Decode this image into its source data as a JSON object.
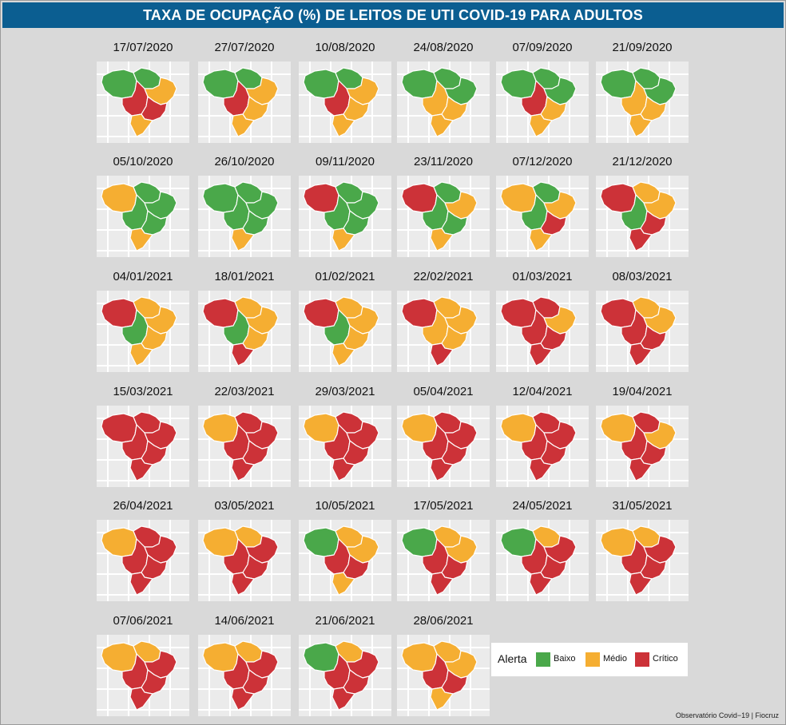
{
  "title": "TAXA DE OCUPAÇÃO (%) DE LEITOS DE UTI COVID-19 PARA ADULTOS",
  "credit": "Observatório Covid−19 | Fiocruz",
  "legend": {
    "title": "Alerta",
    "items": [
      {
        "label": "Baixo",
        "color": "#4aa84a"
      },
      {
        "label": "Médio",
        "color": "#f5ae32"
      },
      {
        "label": "Crítico",
        "color": "#cc3238"
      }
    ]
  },
  "status_colors": {
    "B": "#4aa84a",
    "M": "#f5ae32",
    "C": "#cc3238"
  },
  "map_regions_order": [
    "north-west",
    "north-east",
    "center-west",
    "north-east-coast",
    "south-east",
    "south"
  ],
  "maps": [
    {
      "date": "17/07/2020",
      "regions": [
        "B",
        "B",
        "C",
        "M",
        "C",
        "M"
      ]
    },
    {
      "date": "27/07/2020",
      "regions": [
        "B",
        "B",
        "C",
        "M",
        "M",
        "M"
      ]
    },
    {
      "date": "10/08/2020",
      "regions": [
        "B",
        "B",
        "C",
        "M",
        "M",
        "M"
      ]
    },
    {
      "date": "24/08/2020",
      "regions": [
        "B",
        "B",
        "M",
        "B",
        "M",
        "M"
      ]
    },
    {
      "date": "07/09/2020",
      "regions": [
        "B",
        "B",
        "C",
        "B",
        "M",
        "M"
      ]
    },
    {
      "date": "21/09/2020",
      "regions": [
        "B",
        "B",
        "M",
        "B",
        "M",
        "M"
      ]
    },
    {
      "date": "05/10/2020",
      "regions": [
        "M",
        "B",
        "B",
        "B",
        "B",
        "M"
      ]
    },
    {
      "date": "26/10/2020",
      "regions": [
        "B",
        "B",
        "B",
        "B",
        "B",
        "M"
      ]
    },
    {
      "date": "09/11/2020",
      "regions": [
        "C",
        "B",
        "B",
        "B",
        "B",
        "M"
      ]
    },
    {
      "date": "23/11/2020",
      "regions": [
        "C",
        "B",
        "B",
        "M",
        "B",
        "M"
      ]
    },
    {
      "date": "07/12/2020",
      "regions": [
        "M",
        "B",
        "B",
        "M",
        "C",
        "M"
      ]
    },
    {
      "date": "21/12/2020",
      "regions": [
        "C",
        "M",
        "B",
        "M",
        "C",
        "C"
      ]
    },
    {
      "date": "04/01/2021",
      "regions": [
        "C",
        "M",
        "B",
        "M",
        "M",
        "M"
      ]
    },
    {
      "date": "18/01/2021",
      "regions": [
        "C",
        "M",
        "B",
        "M",
        "M",
        "C"
      ]
    },
    {
      "date": "01/02/2021",
      "regions": [
        "C",
        "M",
        "B",
        "M",
        "M",
        "M"
      ]
    },
    {
      "date": "22/02/2021",
      "regions": [
        "C",
        "M",
        "M",
        "M",
        "M",
        "C"
      ]
    },
    {
      "date": "01/03/2021",
      "regions": [
        "C",
        "C",
        "C",
        "M",
        "C",
        "C"
      ]
    },
    {
      "date": "08/03/2021",
      "regions": [
        "C",
        "M",
        "C",
        "M",
        "C",
        "C"
      ]
    },
    {
      "date": "15/03/2021",
      "regions": [
        "C",
        "C",
        "C",
        "C",
        "C",
        "C"
      ]
    },
    {
      "date": "22/03/2021",
      "regions": [
        "M",
        "C",
        "C",
        "C",
        "C",
        "C"
      ]
    },
    {
      "date": "29/03/2021",
      "regions": [
        "M",
        "C",
        "C",
        "C",
        "C",
        "C"
      ]
    },
    {
      "date": "05/04/2021",
      "regions": [
        "M",
        "C",
        "C",
        "C",
        "C",
        "C"
      ]
    },
    {
      "date": "12/04/2021",
      "regions": [
        "M",
        "C",
        "C",
        "C",
        "C",
        "C"
      ]
    },
    {
      "date": "19/04/2021",
      "regions": [
        "M",
        "C",
        "C",
        "M",
        "C",
        "C"
      ]
    },
    {
      "date": "26/04/2021",
      "regions": [
        "M",
        "C",
        "C",
        "C",
        "C",
        "C"
      ]
    },
    {
      "date": "03/05/2021",
      "regions": [
        "M",
        "M",
        "C",
        "C",
        "C",
        "C"
      ]
    },
    {
      "date": "10/05/2021",
      "regions": [
        "B",
        "M",
        "C",
        "M",
        "C",
        "M"
      ]
    },
    {
      "date": "17/05/2021",
      "regions": [
        "B",
        "M",
        "C",
        "M",
        "C",
        "C"
      ]
    },
    {
      "date": "24/05/2021",
      "regions": [
        "B",
        "M",
        "C",
        "C",
        "C",
        "C"
      ]
    },
    {
      "date": "31/05/2021",
      "regions": [
        "M",
        "M",
        "C",
        "C",
        "C",
        "C"
      ]
    },
    {
      "date": "07/06/2021",
      "regions": [
        "M",
        "M",
        "C",
        "C",
        "C",
        "C"
      ]
    },
    {
      "date": "14/06/2021",
      "regions": [
        "M",
        "M",
        "C",
        "C",
        "C",
        "C"
      ]
    },
    {
      "date": "21/06/2021",
      "regions": [
        "B",
        "M",
        "C",
        "C",
        "C",
        "C"
      ]
    },
    {
      "date": "28/06/2021",
      "regions": [
        "M",
        "M",
        "C",
        "M",
        "C",
        "M"
      ]
    }
  ]
}
